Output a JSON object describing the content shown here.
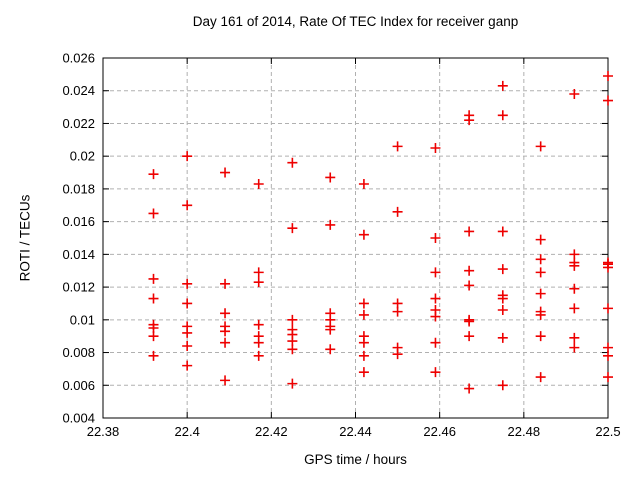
{
  "colors": {
    "background": "#ffffff",
    "axis": "#000000",
    "grid": "#b0b0b0",
    "text": "#000000",
    "marker": "#ee0000"
  },
  "chart_data": {
    "type": "scatter",
    "title": "Day 161 of 2014, Rate Of TEC Index for receiver ganp",
    "xlabel": "GPS time / hours",
    "ylabel": "ROTI / TECUs",
    "xlim": [
      22.38,
      22.5
    ],
    "ylim": [
      0.004,
      0.026
    ],
    "xticks": [
      22.38,
      22.4,
      22.42,
      22.44,
      22.46,
      22.48,
      22.5
    ],
    "yticks": [
      0.004,
      0.006,
      0.008,
      0.01,
      0.012,
      0.014,
      0.016,
      0.018,
      0.02,
      0.022,
      0.024,
      0.026
    ],
    "grid": true,
    "legend": "none",
    "marker": {
      "shape": "plus",
      "color": "#ee0000",
      "size": 5
    },
    "series": [
      {
        "name": "ROTI",
        "points": [
          [
            22.392,
            0.0189
          ],
          [
            22.392,
            0.0165
          ],
          [
            22.392,
            0.0125
          ],
          [
            22.392,
            0.0113
          ],
          [
            22.392,
            0.0097
          ],
          [
            22.392,
            0.0095
          ],
          [
            22.392,
            0.009
          ],
          [
            22.392,
            0.0078
          ],
          [
            22.4,
            0.02
          ],
          [
            22.4,
            0.017
          ],
          [
            22.4,
            0.0122
          ],
          [
            22.4,
            0.011
          ],
          [
            22.4,
            0.0096
          ],
          [
            22.4,
            0.0092
          ],
          [
            22.4,
            0.0084
          ],
          [
            22.4,
            0.0072
          ],
          [
            22.409,
            0.019
          ],
          [
            22.409,
            0.0122
          ],
          [
            22.409,
            0.0104
          ],
          [
            22.409,
            0.0096
          ],
          [
            22.409,
            0.0093
          ],
          [
            22.409,
            0.0086
          ],
          [
            22.409,
            0.0063
          ],
          [
            22.417,
            0.0183
          ],
          [
            22.417,
            0.0129
          ],
          [
            22.417,
            0.0123
          ],
          [
            22.417,
            0.0097
          ],
          [
            22.417,
            0.009
          ],
          [
            22.417,
            0.0086
          ],
          [
            22.417,
            0.0078
          ],
          [
            22.425,
            0.0196
          ],
          [
            22.425,
            0.0156
          ],
          [
            22.425,
            0.01
          ],
          [
            22.425,
            0.0094
          ],
          [
            22.425,
            0.0091
          ],
          [
            22.425,
            0.0087
          ],
          [
            22.425,
            0.0082
          ],
          [
            22.425,
            0.0061
          ],
          [
            22.434,
            0.0187
          ],
          [
            22.434,
            0.0158
          ],
          [
            22.434,
            0.0104
          ],
          [
            22.434,
            0.01
          ],
          [
            22.434,
            0.0096
          ],
          [
            22.434,
            0.0094
          ],
          [
            22.434,
            0.0082
          ],
          [
            22.442,
            0.0183
          ],
          [
            22.442,
            0.0152
          ],
          [
            22.442,
            0.011
          ],
          [
            22.442,
            0.0103
          ],
          [
            22.442,
            0.009
          ],
          [
            22.442,
            0.0086
          ],
          [
            22.442,
            0.0078
          ],
          [
            22.442,
            0.0068
          ],
          [
            22.45,
            0.0206
          ],
          [
            22.45,
            0.0166
          ],
          [
            22.45,
            0.011
          ],
          [
            22.45,
            0.0105
          ],
          [
            22.45,
            0.0083
          ],
          [
            22.45,
            0.0079
          ],
          [
            22.459,
            0.0205
          ],
          [
            22.459,
            0.015
          ],
          [
            22.459,
            0.0129
          ],
          [
            22.459,
            0.0113
          ],
          [
            22.459,
            0.0106
          ],
          [
            22.459,
            0.0102
          ],
          [
            22.459,
            0.0086
          ],
          [
            22.459,
            0.0068
          ],
          [
            22.467,
            0.0225
          ],
          [
            22.467,
            0.0222
          ],
          [
            22.467,
            0.0154
          ],
          [
            22.467,
            0.013
          ],
          [
            22.467,
            0.0121
          ],
          [
            22.467,
            0.01
          ],
          [
            22.467,
            0.0099
          ],
          [
            22.467,
            0.009
          ],
          [
            22.467,
            0.0058
          ],
          [
            22.475,
            0.0243
          ],
          [
            22.475,
            0.0225
          ],
          [
            22.475,
            0.0154
          ],
          [
            22.475,
            0.0131
          ],
          [
            22.475,
            0.0115
          ],
          [
            22.475,
            0.0113
          ],
          [
            22.475,
            0.0106
          ],
          [
            22.475,
            0.0089
          ],
          [
            22.475,
            0.006
          ],
          [
            22.484,
            0.0206
          ],
          [
            22.484,
            0.0149
          ],
          [
            22.484,
            0.0137
          ],
          [
            22.484,
            0.0129
          ],
          [
            22.484,
            0.0116
          ],
          [
            22.484,
            0.0105
          ],
          [
            22.484,
            0.0103
          ],
          [
            22.484,
            0.009
          ],
          [
            22.484,
            0.0065
          ],
          [
            22.492,
            0.0238
          ],
          [
            22.492,
            0.014
          ],
          [
            22.492,
            0.0135
          ],
          [
            22.492,
            0.0133
          ],
          [
            22.492,
            0.0119
          ],
          [
            22.492,
            0.0107
          ],
          [
            22.492,
            0.0089
          ],
          [
            22.492,
            0.0083
          ],
          [
            22.5,
            0.0249
          ],
          [
            22.5,
            0.0234
          ],
          [
            22.5,
            0.0135
          ],
          [
            22.5,
            0.0134
          ],
          [
            22.5,
            0.0132
          ],
          [
            22.5,
            0.0107
          ],
          [
            22.5,
            0.0083
          ],
          [
            22.5,
            0.0078
          ],
          [
            22.5,
            0.0065
          ]
        ]
      }
    ]
  }
}
